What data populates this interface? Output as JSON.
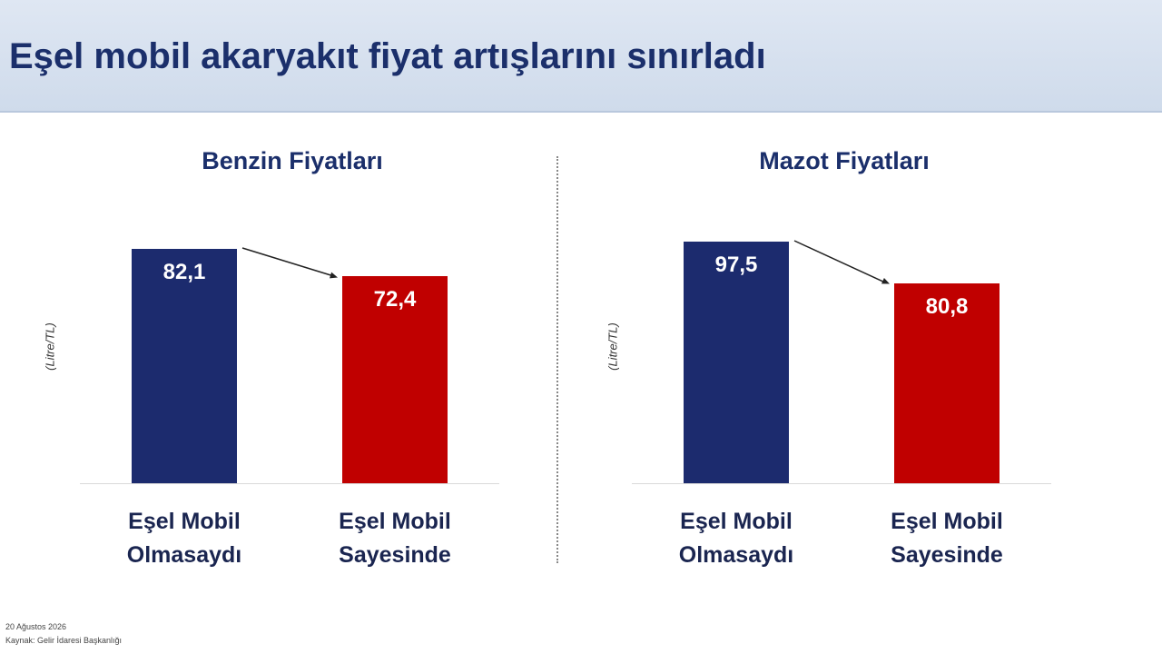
{
  "header": {
    "title": "Eşel mobil akaryakıt fiyat artışlarını sınırladı"
  },
  "chart_data": [
    {
      "type": "bar",
      "title": "Benzin Fiyatları",
      "y_label": "(Litre/TL)",
      "categories": [
        "Eşel Mobil Olmasaydı",
        "Eşel Mobil Sayesinde"
      ],
      "values": [
        82.1,
        72.4
      ],
      "value_labels": [
        "82,1",
        "72,4"
      ],
      "colors": [
        "#1c2b6e",
        "#c00000"
      ]
    },
    {
      "type": "bar",
      "title": "Mazot Fiyatları",
      "y_label": "(Litre/TL)",
      "categories": [
        "Eşel Mobil Olmasaydı",
        "Eşel Mobil Sayesinde"
      ],
      "values": [
        97.5,
        80.8
      ],
      "value_labels": [
        "97,5",
        "80,8"
      ],
      "colors": [
        "#1c2b6e",
        "#c00000"
      ]
    }
  ],
  "footer": {
    "date": "20 Ağustos 2026",
    "source": "Kaynak: Gelir İdaresi Başkanlığı"
  }
}
